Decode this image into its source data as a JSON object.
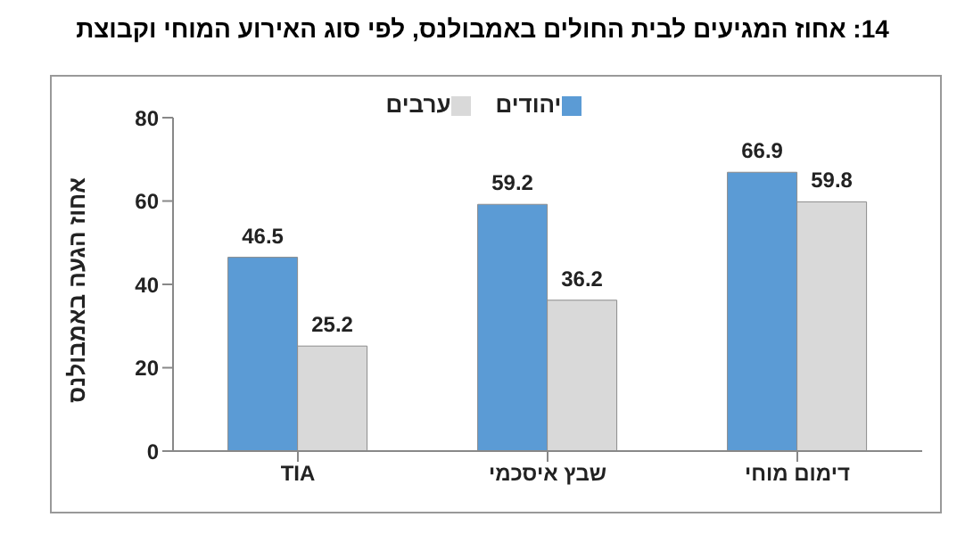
{
  "chart_data": {
    "type": "bar",
    "title": "14: אחוז המגיעים לבית החולים באמבולנס, לפי סוג האירוע המוחי וקבוצת",
    "ylabel": "אחוז הגעה באמבולנס",
    "categories": [
      "TIA",
      "שבץ איסכמי",
      "דימום מוחי"
    ],
    "series": [
      {
        "name": "יהודים",
        "color": "#5b9bd5",
        "values": [
          46.5,
          59.2,
          66.9
        ]
      },
      {
        "name": "ערבים",
        "color": "#d9d9d9",
        "values": [
          25.2,
          36.2,
          59.8
        ]
      }
    ],
    "ylim": [
      0,
      80
    ],
    "yticks": [
      0,
      20,
      40,
      60,
      80
    ],
    "data_labels": true,
    "grid": false,
    "legend": "top"
  }
}
